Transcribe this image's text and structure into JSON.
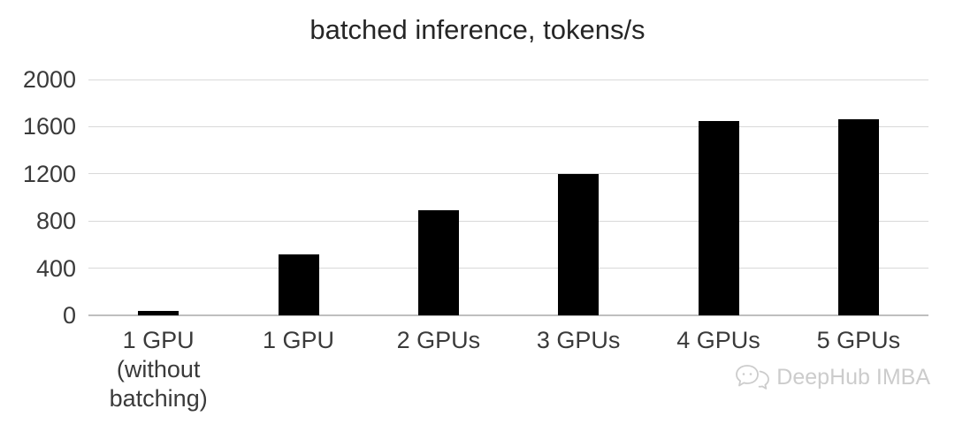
{
  "chart_data": {
    "type": "bar",
    "title": "batched inference, tokens/s",
    "categories": [
      "1 GPU\n(without\nbatching)",
      "1 GPU",
      "2 GPUs",
      "3 GPUs",
      "4 GPUs",
      "5 GPUs"
    ],
    "values": [
      40,
      520,
      890,
      1200,
      1650,
      1660
    ],
    "xlabel": "",
    "ylabel": "",
    "ylim": [
      0,
      2000
    ],
    "yticks": [
      0,
      400,
      800,
      1200,
      1600,
      2000
    ],
    "bar_color": "#000000",
    "grid": true,
    "gridline_color": "#d9d9d9",
    "legend": "none"
  },
  "watermark": {
    "text": "DeepHub IMBA",
    "color": "#cccccc",
    "icon": "wechat-chat-bubbles-icon"
  }
}
